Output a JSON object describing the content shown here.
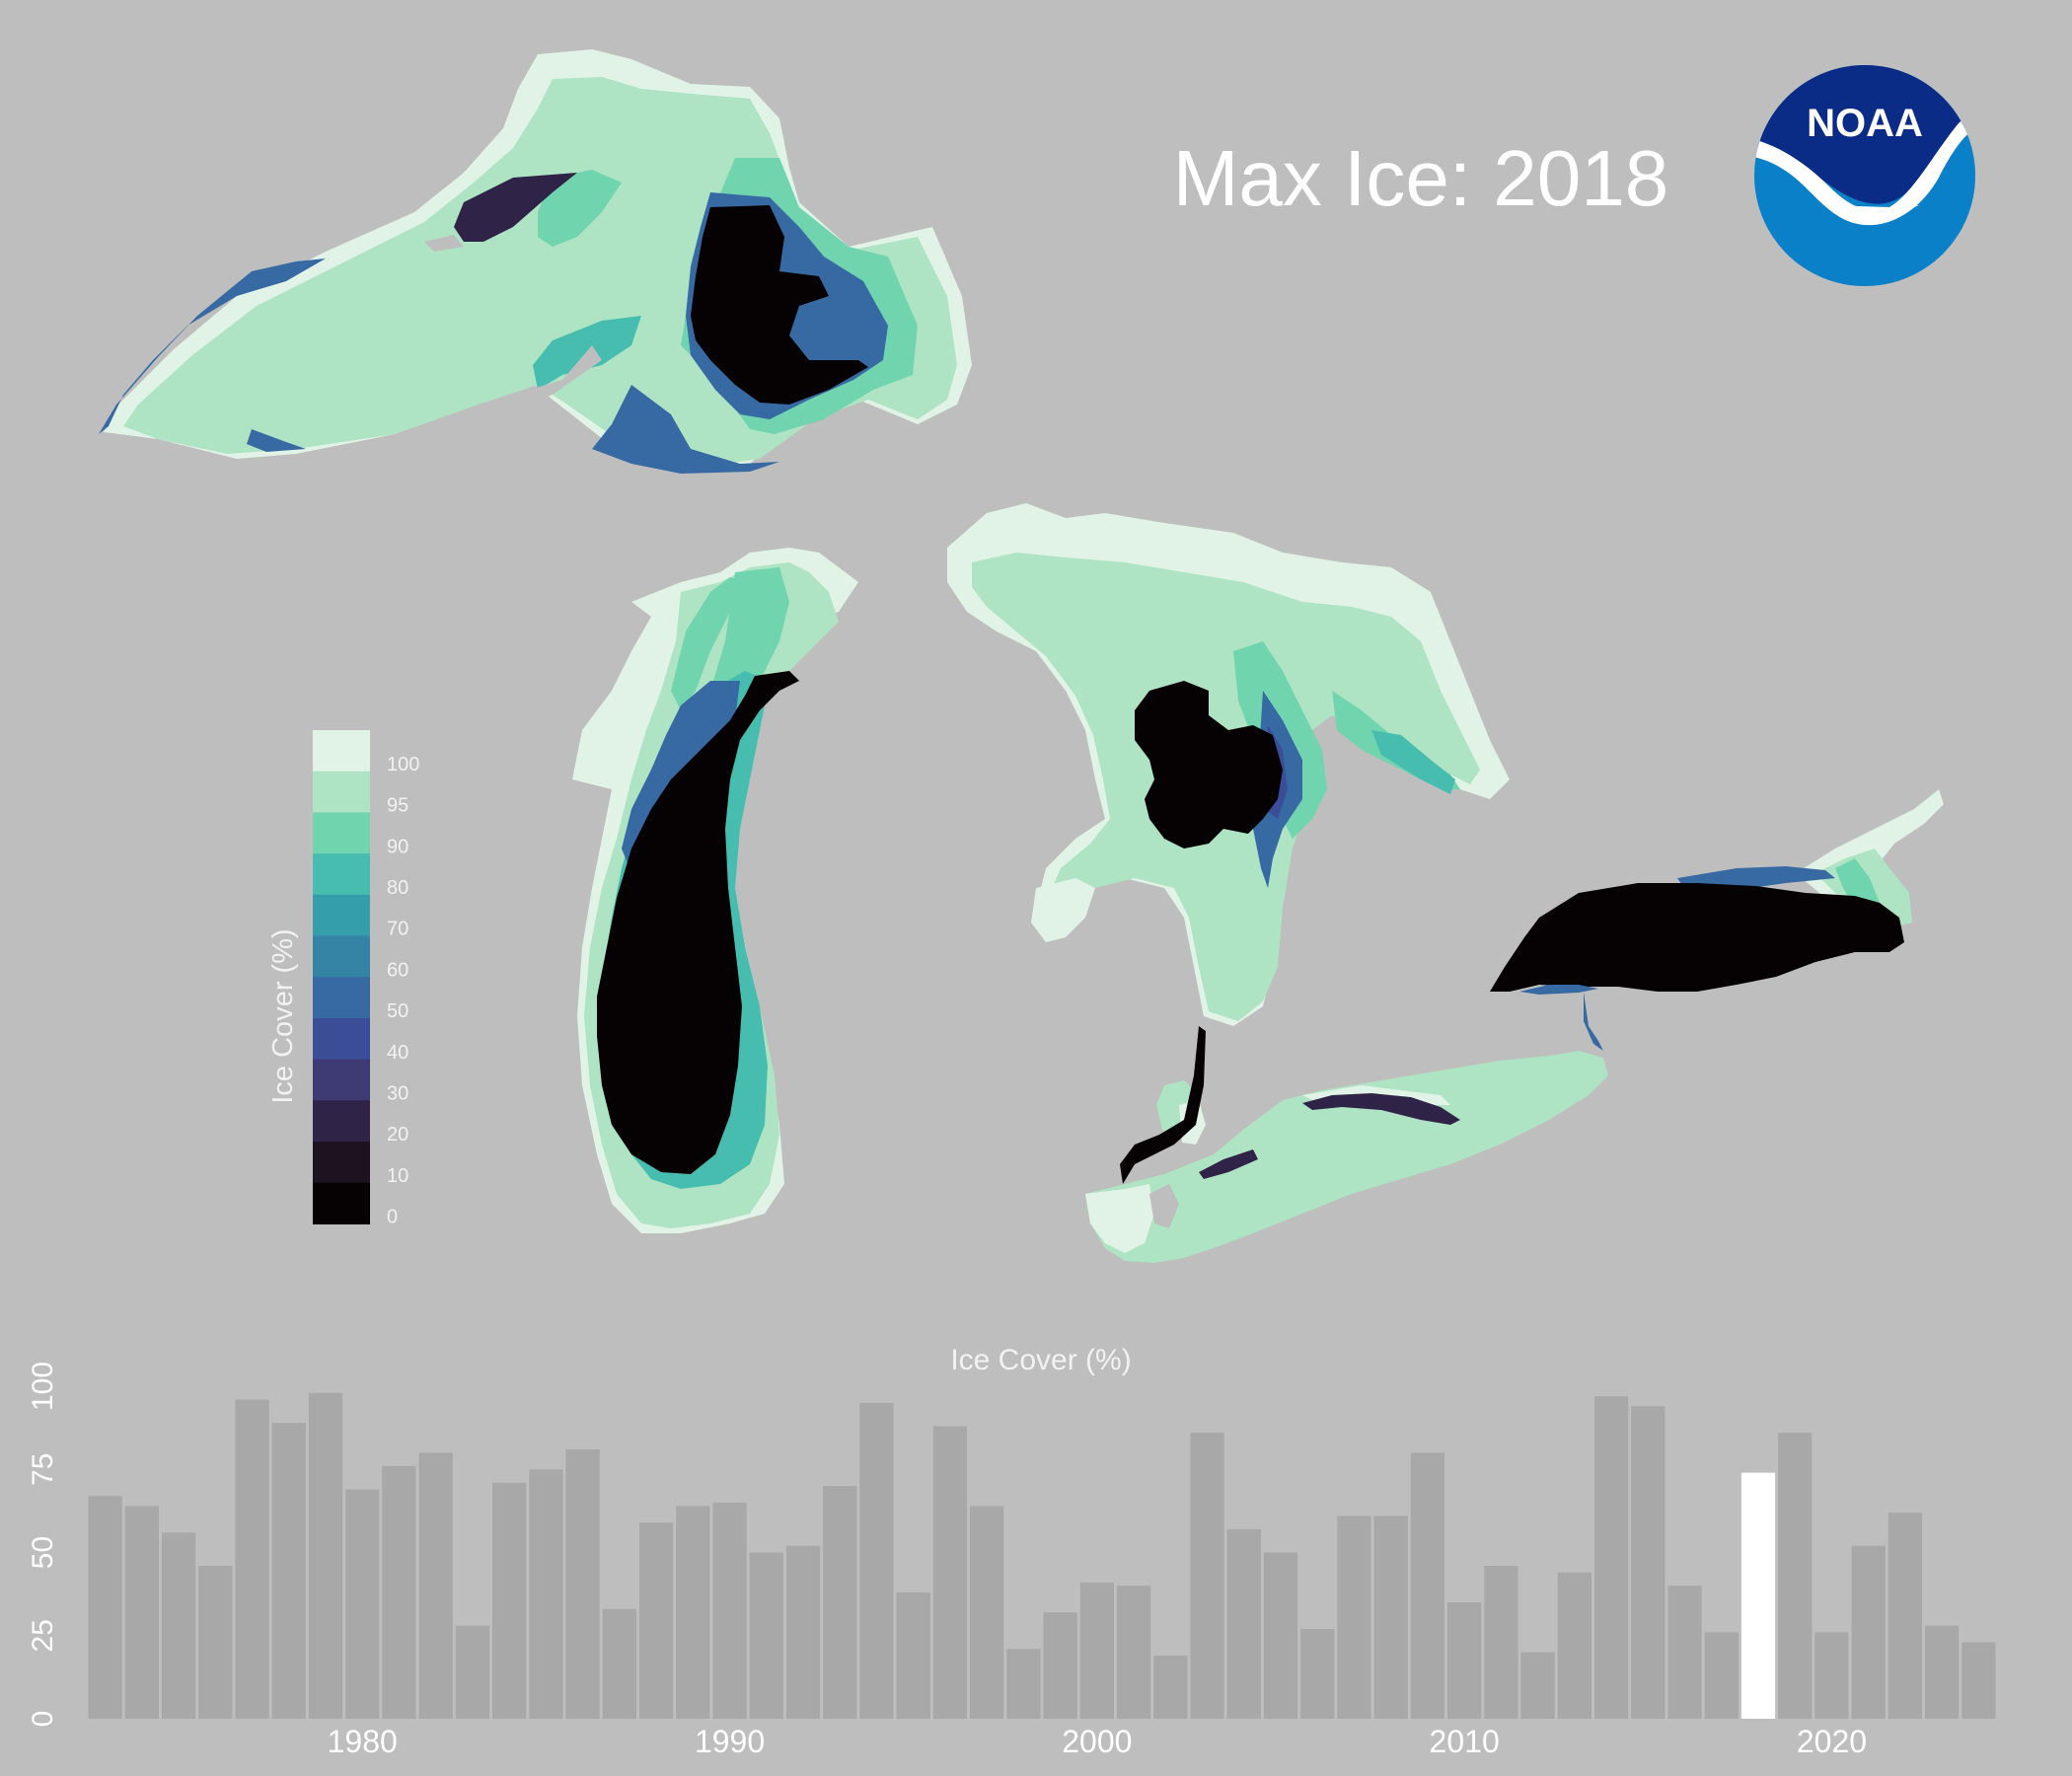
{
  "title": "Max Ice: 2018",
  "logo": {
    "text": "NOAA",
    "colors": {
      "outer": "#0a80c8",
      "top": "#0b2c86",
      "bird": "#ffffff"
    }
  },
  "legend": {
    "title": "Ice Cover (%)",
    "labels": [
      "100",
      "95",
      "90",
      "80",
      "70",
      "60",
      "50",
      "40",
      "30",
      "20",
      "10",
      "0"
    ],
    "colors": [
      "#e0f3e6",
      "#aee3c4",
      "#70d4ae",
      "#47bdaf",
      "#349fab",
      "#3584a6",
      "#376aa2",
      "#3b4d97",
      "#3e3a74",
      "#2f2448",
      "#1d1320",
      "#060203"
    ]
  },
  "chart_data": {
    "type": "bar",
    "title": "Ice Cover (%)",
    "xlabel": "",
    "ylabel": "",
    "ylim": [
      0,
      100
    ],
    "xlim": [
      1972,
      2024
    ],
    "yticks": [
      "0",
      "25",
      "50",
      "75",
      "100"
    ],
    "xticks": [
      "1980",
      "1990",
      "2000",
      "2010",
      "2020"
    ],
    "highlight_year": 2018,
    "bar_color": "#a8a8a8",
    "highlight_color": "#ffffff",
    "x": [
      1973,
      1974,
      1975,
      1976,
      1977,
      1978,
      1979,
      1980,
      1981,
      1982,
      1983,
      1984,
      1985,
      1986,
      1987,
      1988,
      1989,
      1990,
      1991,
      1992,
      1993,
      1994,
      1995,
      1996,
      1997,
      1998,
      1999,
      2000,
      2001,
      2002,
      2003,
      2004,
      2005,
      2006,
      2007,
      2008,
      2009,
      2010,
      2011,
      2012,
      2013,
      2014,
      2015,
      2016,
      2017,
      2018,
      2019,
      2020,
      2021,
      2022,
      2023,
      2024
    ],
    "values": [
      67,
      64,
      56,
      46,
      96,
      89,
      98,
      69,
      76,
      80,
      28,
      71,
      75,
      81,
      33,
      59,
      64,
      65,
      50,
      52,
      70,
      95,
      38,
      88,
      64,
      21,
      32,
      41,
      40,
      19,
      86,
      57,
      50,
      27,
      61,
      61,
      80,
      35,
      46,
      20,
      44,
      97,
      94,
      40,
      26,
      74,
      86,
      26,
      52,
      62,
      28,
      23
    ]
  }
}
